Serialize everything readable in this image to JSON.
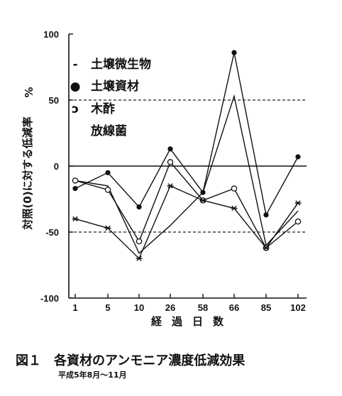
{
  "chart_data": {
    "type": "line",
    "categories": [
      "1",
      "5",
      "10",
      "26",
      "58",
      "66",
      "85",
      "102"
    ],
    "series": [
      {
        "name": "土壌微生物",
        "marker": "none",
        "values": [
          -11,
          -15,
          -66,
          -45,
          -20,
          53,
          -60,
          -34
        ]
      },
      {
        "name": "土壌資材",
        "marker": "filled",
        "values": [
          -17,
          -5,
          -31,
          13,
          -20,
          86,
          -37,
          7
        ]
      },
      {
        "name": "木酢",
        "marker": "open",
        "values": [
          -11,
          -18,
          -57,
          3,
          -26,
          -17,
          -62,
          -42
        ]
      },
      {
        "name": "放線菌",
        "marker": "star",
        "values": [
          -40,
          -47,
          -70,
          -15,
          -26,
          -32,
          -62,
          -28
        ]
      }
    ],
    "yticks": [
      "100",
      "50",
      "0",
      "-50",
      "-100"
    ],
    "ylim": [
      -100,
      100
    ],
    "reference_lines": [
      50,
      -50
    ],
    "zero_line": 0,
    "ylabel": "対照(0)に対する低減率",
    "ylabel_unit": "%",
    "xlabel": "経過日数",
    "legend_position": "top-left"
  },
  "legend_markers": {
    "line": "-",
    "filled": "●",
    "open": "ɔ"
  },
  "caption": {
    "title": "図１　各資材のアンモニア濃度低減効果",
    "subtitle": "平成5年8月～11月"
  }
}
